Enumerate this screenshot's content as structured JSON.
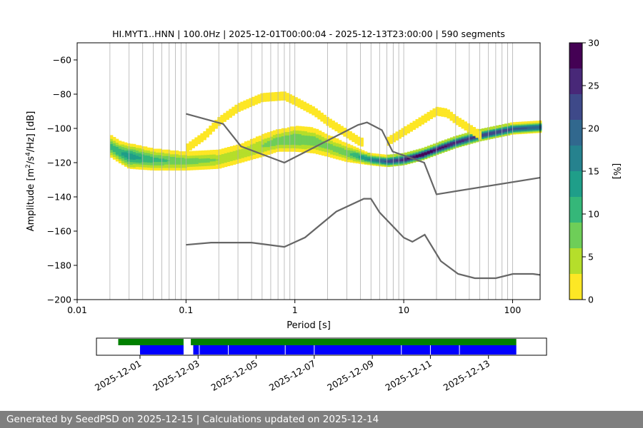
{
  "title": "HI.MYT1..HNN | 100.0Hz | 2025-12-01T00:00:04 - 2025-12-13T23:00:00 | 590 segments",
  "footer": "Generated by SeedPSD on 2025-12-15 | Calculations updated on 2025-12-14",
  "chart_data": {
    "type": "heatmap",
    "title": "HI.MYT1..HNN | 100.0Hz | 2025-12-01T00:00:04 - 2025-12-13T23:00:00 | 590 segments",
    "xlabel": "Period [s]",
    "ylabel_prefix": "Amplitude [m",
    "ylabel_mid": "/s",
    "ylabel_suffix": "/Hz] [dB]",
    "ylabel_sup1": "2",
    "ylabel_sup2": "4",
    "xscale": "log",
    "xlim": [
      0.01,
      179
    ],
    "ylim": [
      -200,
      -50
    ],
    "xticks": [
      0.01,
      0.1,
      1,
      10,
      100
    ],
    "xtick_labels": [
      "0.01",
      "0.1",
      "1",
      "10",
      "100"
    ],
    "yticks": [
      -200,
      -180,
      -160,
      -140,
      -120,
      -100,
      -80,
      -60
    ],
    "ytick_labels": [
      "−200",
      "−180",
      "−160",
      "−140",
      "−120",
      "−100",
      "−80",
      "−60"
    ],
    "vertical_grid_periods": [
      0.01,
      0.02,
      0.03,
      0.04,
      0.05,
      0.06,
      0.07,
      0.08,
      0.09,
      0.1,
      0.2,
      0.3,
      0.4,
      0.5,
      0.6,
      0.7,
      0.8,
      0.9,
      1,
      2,
      3,
      4,
      5,
      6,
      7,
      8,
      9,
      10,
      20,
      30,
      40,
      50,
      60,
      70,
      80,
      90,
      100
    ],
    "colorbar": {
      "label": "[%]",
      "range": [
        0,
        30
      ],
      "ticks": [
        0,
        5,
        10,
        15,
        20,
        25,
        30
      ],
      "colormap": "viridis_r",
      "colors": [
        "#fde725",
        "#b5de2b",
        "#6ece58",
        "#35b779",
        "#1f9e89",
        "#26828e",
        "#31688e",
        "#3e4989",
        "#482878",
        "#440154"
      ]
    },
    "heatmap_bands": [
      {
        "name": "main-noise-band",
        "period": [
          0.02,
          0.025,
          0.03,
          0.05,
          0.1,
          0.2,
          0.3,
          0.5,
          0.7,
          1,
          1.5,
          2,
          3,
          5,
          7,
          10,
          15,
          20,
          30,
          50,
          100,
          179
        ],
        "center_db": [
          -110,
          -114,
          -116,
          -118,
          -119,
          -118,
          -115,
          -110,
          -107,
          -106,
          -107,
          -110,
          -114,
          -118,
          -119,
          -118,
          -115,
          -112,
          -108,
          -104,
          -100,
          -99
        ],
        "spread_db": [
          6,
          6,
          7,
          6,
          5,
          5,
          5,
          6,
          6,
          7,
          7,
          6,
          5,
          3,
          3,
          3,
          3,
          3,
          3,
          3,
          3,
          3
        ],
        "peak_percent": [
          10,
          12,
          14,
          10,
          8,
          6,
          5,
          6,
          8,
          9,
          8,
          7,
          8,
          16,
          22,
          26,
          30,
          28,
          26,
          24,
          22,
          20
        ]
      },
      {
        "name": "sparse-high-band",
        "period": [
          0.1,
          0.15,
          0.2,
          0.3,
          0.5,
          0.8,
          1,
          1.5,
          2,
          3,
          4
        ],
        "center_db": [
          -112,
          -104,
          -96,
          -88,
          -82,
          -81,
          -84,
          -90,
          -96,
          -103,
          -108
        ],
        "spread_db": [
          2,
          2,
          2,
          2,
          2,
          2,
          2,
          2,
          2,
          2,
          2
        ],
        "peak_percent": [
          1,
          1,
          1,
          1,
          1,
          1,
          1,
          1,
          1,
          1,
          1
        ]
      },
      {
        "name": "sparse-long-period-bump",
        "period": [
          7,
          10,
          15,
          20,
          25,
          30,
          40,
          50
        ],
        "center_db": [
          -108,
          -102,
          -95,
          -90,
          -91,
          -95,
          -100,
          -104
        ],
        "spread_db": [
          2,
          2,
          2,
          2,
          2,
          2,
          2,
          2
        ],
        "peak_percent": [
          1,
          1,
          1,
          1,
          1,
          1,
          1,
          1
        ]
      }
    ],
    "series": [
      {
        "name": "noise-model-high",
        "x": [
          0.1,
          0.22,
          0.32,
          0.8,
          3.8,
          4.6,
          6.3,
          7.9,
          15.4,
          20,
          179
        ],
        "y": [
          -91.5,
          -97.4,
          -110.5,
          -120,
          -98,
          -96.5,
          -101,
          -113.5,
          -120,
          -138.5,
          -128.8
        ]
      },
      {
        "name": "noise-model-low",
        "x": [
          0.1,
          0.17,
          0.4,
          0.8,
          1.24,
          2.4,
          4.3,
          5,
          6,
          10,
          12,
          15.6,
          21.9,
          31.6,
          45,
          70,
          101,
          154,
          179
        ],
        "y": [
          -168,
          -166.7,
          -166.7,
          -169.2,
          -163.7,
          -148.6,
          -141.1,
          -141.1,
          -149.1,
          -163.8,
          -166.2,
          -162.1,
          -177.5,
          -185,
          -187.5,
          -187.5,
          -185,
          -185,
          -185.6
        ]
      }
    ],
    "availability": {
      "xlim_dates": [
        "2025-11-29T12:00",
        "2025-12-15T00:00"
      ],
      "date_ticks": [
        "2025-12-01",
        "2025-12-03",
        "2025-12-05",
        "2025-12-07",
        "2025-12-09",
        "2025-12-11",
        "2025-12-13"
      ],
      "data_coverage_color": "#008000",
      "psd_segments_color": "#0000ff",
      "data_coverage_ranges": [
        [
          "2025-11-30T06:00",
          "2025-12-02T12:00"
        ],
        [
          "2025-12-02T18:00",
          "2025-12-13T23:00"
        ]
      ],
      "psd_segments_ranges": [
        [
          "2025-12-01T00:00",
          "2025-12-02T12:00"
        ],
        [
          "2025-12-02T20:00",
          "2025-12-13T23:00"
        ]
      ],
      "segment_gap_markers": [
        "2025-12-03T01:00",
        "2025-12-04T01:00",
        "2025-12-06T00:00",
        "2025-12-07T00:00",
        "2025-12-10T00:00",
        "2025-12-11T00:00",
        "2025-12-12T00:00"
      ]
    }
  }
}
